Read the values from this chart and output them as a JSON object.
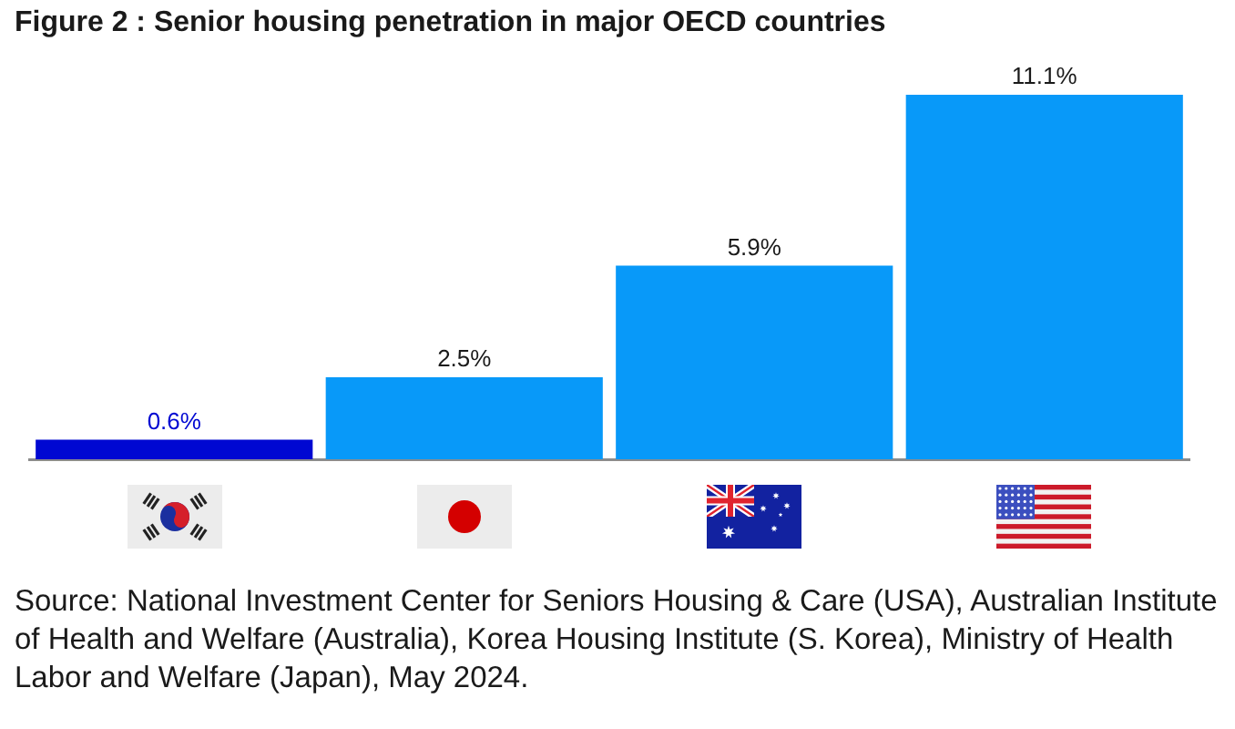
{
  "chart_data": {
    "type": "bar",
    "title": "Figure 2 : Senior housing penetration in major OECD countries",
    "categories": [
      null,
      null,
      null,
      null
    ],
    "values": [
      0.6,
      2.5,
      5.9,
      11.1
    ],
    "colors": [
      "#0008d2",
      "#0899f9",
      "#0899f9",
      "#0899f9"
    ],
    "value_labels": [
      "0.6%",
      "2.5%",
      "5.9%",
      "11.1%"
    ],
    "annotations": [
      "Source: National Investment Center for Seniors Housing & Care (USA), Australian Institute of Health and Welfare (Australia), Korea Housing Institute (S. Korea), Ministry of Health Labor and Welfare (Japan), May 2024."
    ],
    "grid": false,
    "legend": false
  }
}
